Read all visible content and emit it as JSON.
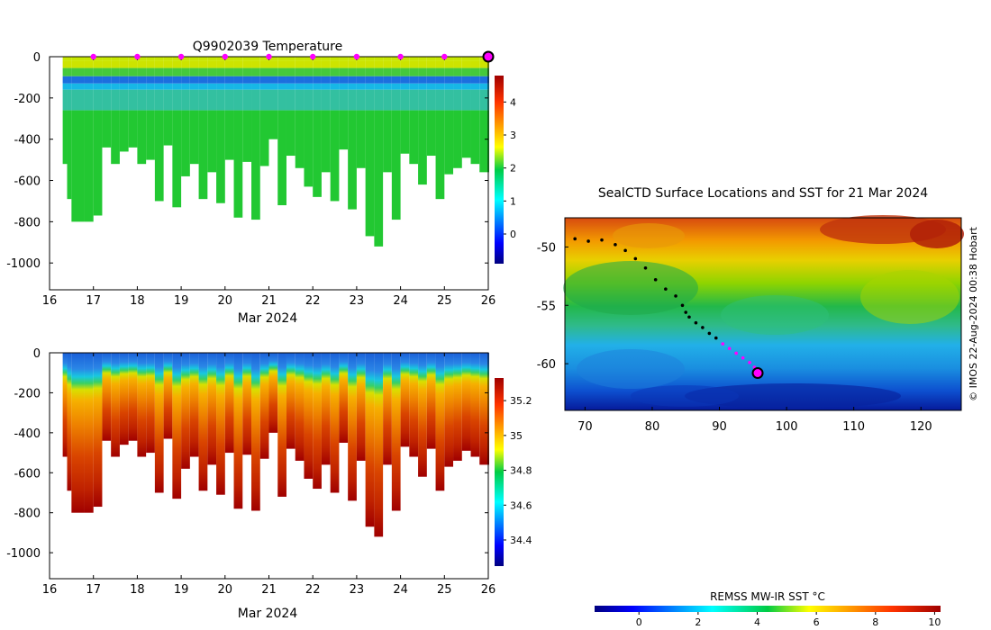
{
  "chart_data": [
    {
      "type": "heatmap",
      "title": "Q9902039  Temperature",
      "xlabel": "Mar 2024",
      "xlim": [
        16,
        26
      ],
      "x_ticks": [
        16,
        17,
        18,
        19,
        20,
        21,
        22,
        23,
        24,
        25,
        26
      ],
      "ylim": [
        -1130,
        0
      ],
      "y_ticks": [
        0,
        -200,
        -400,
        -600,
        -800,
        -1000
      ],
      "colorbar": {
        "range": [
          -0.9,
          4.8
        ],
        "ticks": [
          0,
          1,
          2,
          3,
          4
        ],
        "colormap": "jet"
      },
      "surface_markers": {
        "days": [
          17,
          18,
          19,
          20,
          21,
          22,
          23,
          24,
          25
        ],
        "color": "#ff00ff",
        "current_day": 26,
        "current_color": "#aa00aa"
      },
      "profiles": {
        "days": [
          16.3,
          16.4,
          16.5,
          16.8,
          17.0,
          17.2,
          17.4,
          17.6,
          17.8,
          18.0,
          18.2,
          18.4,
          18.6,
          18.8,
          19.0,
          19.2,
          19.4,
          19.6,
          19.8,
          20.0,
          20.2,
          20.4,
          20.6,
          20.8,
          21.0,
          21.2,
          21.4,
          21.6,
          21.8,
          22.0,
          22.2,
          22.4,
          22.6,
          22.8,
          23.0,
          23.2,
          23.4,
          23.6,
          23.8,
          24.0,
          24.2,
          24.4,
          24.6,
          24.8,
          25.0,
          25.2,
          25.4,
          25.6,
          25.8,
          26.0
        ],
        "depths": [
          520,
          690,
          800,
          800,
          770,
          440,
          520,
          460,
          440,
          520,
          500,
          700,
          430,
          730,
          580,
          520,
          690,
          560,
          710,
          500,
          780,
          510,
          790,
          530,
          400,
          720,
          480,
          540,
          630,
          680,
          560,
          700,
          450,
          740,
          540,
          870,
          920,
          560,
          790,
          470,
          520,
          620,
          480,
          690,
          570,
          540,
          490,
          520,
          560,
          560
        ]
      }
    },
    {
      "type": "heatmap",
      "title": "",
      "xlabel": "Mar 2024",
      "xlim": [
        16,
        26
      ],
      "x_ticks": [
        16,
        17,
        18,
        19,
        20,
        21,
        22,
        23,
        24,
        25,
        26
      ],
      "ylim": [
        -1130,
        0
      ],
      "y_ticks": [
        0,
        -200,
        -400,
        -600,
        -800,
        -1000
      ],
      "colorbar": {
        "range": [
          34.25,
          35.33
        ],
        "ticks": [
          34.4,
          34.6,
          34.8,
          35,
          35.2
        ],
        "colormap": "jet"
      },
      "quantity": "salinity"
    },
    {
      "type": "map",
      "title": "SealCTD Surface Locations and SST for 21 Mar 2024",
      "xlim": [
        67,
        126
      ],
      "ylim": [
        -64,
        -47.5
      ],
      "x_ticks": [
        70,
        80,
        90,
        100,
        110,
        120
      ],
      "y_ticks": [
        -50,
        -55,
        -60
      ],
      "track": {
        "lon": [
          68.5,
          70.5,
          72.5,
          74.5,
          76.0,
          77.5,
          79.0,
          80.5,
          82.0,
          83.5,
          84.5,
          85.0,
          85.5,
          86.5,
          87.5,
          88.5,
          89.5,
          90.5,
          91.5,
          92.5,
          93.5,
          94.5,
          95.2,
          95.5,
          95.7
        ],
        "lat": [
          -49.3,
          -49.5,
          -49.4,
          -49.8,
          -50.3,
          -51.0,
          -51.8,
          -52.8,
          -53.6,
          -54.2,
          -55.0,
          -55.6,
          -56.0,
          -56.5,
          -56.9,
          -57.4,
          -57.8,
          -58.3,
          -58.7,
          -59.1,
          -59.5,
          -59.9,
          -60.3,
          -60.6,
          -60.8
        ],
        "recent_from_index": 17,
        "colors": {
          "older": "#000000",
          "recent": "#ff00ff"
        }
      },
      "sst_colorbar": {
        "label": "REMSS MW-IR SST °C",
        "range": [
          -1.5,
          10.2
        ],
        "ticks": [
          0,
          2,
          4,
          6,
          8,
          10
        ]
      },
      "credit": "© IMOS 22-Aug-2024 00:38 Hobart"
    }
  ]
}
